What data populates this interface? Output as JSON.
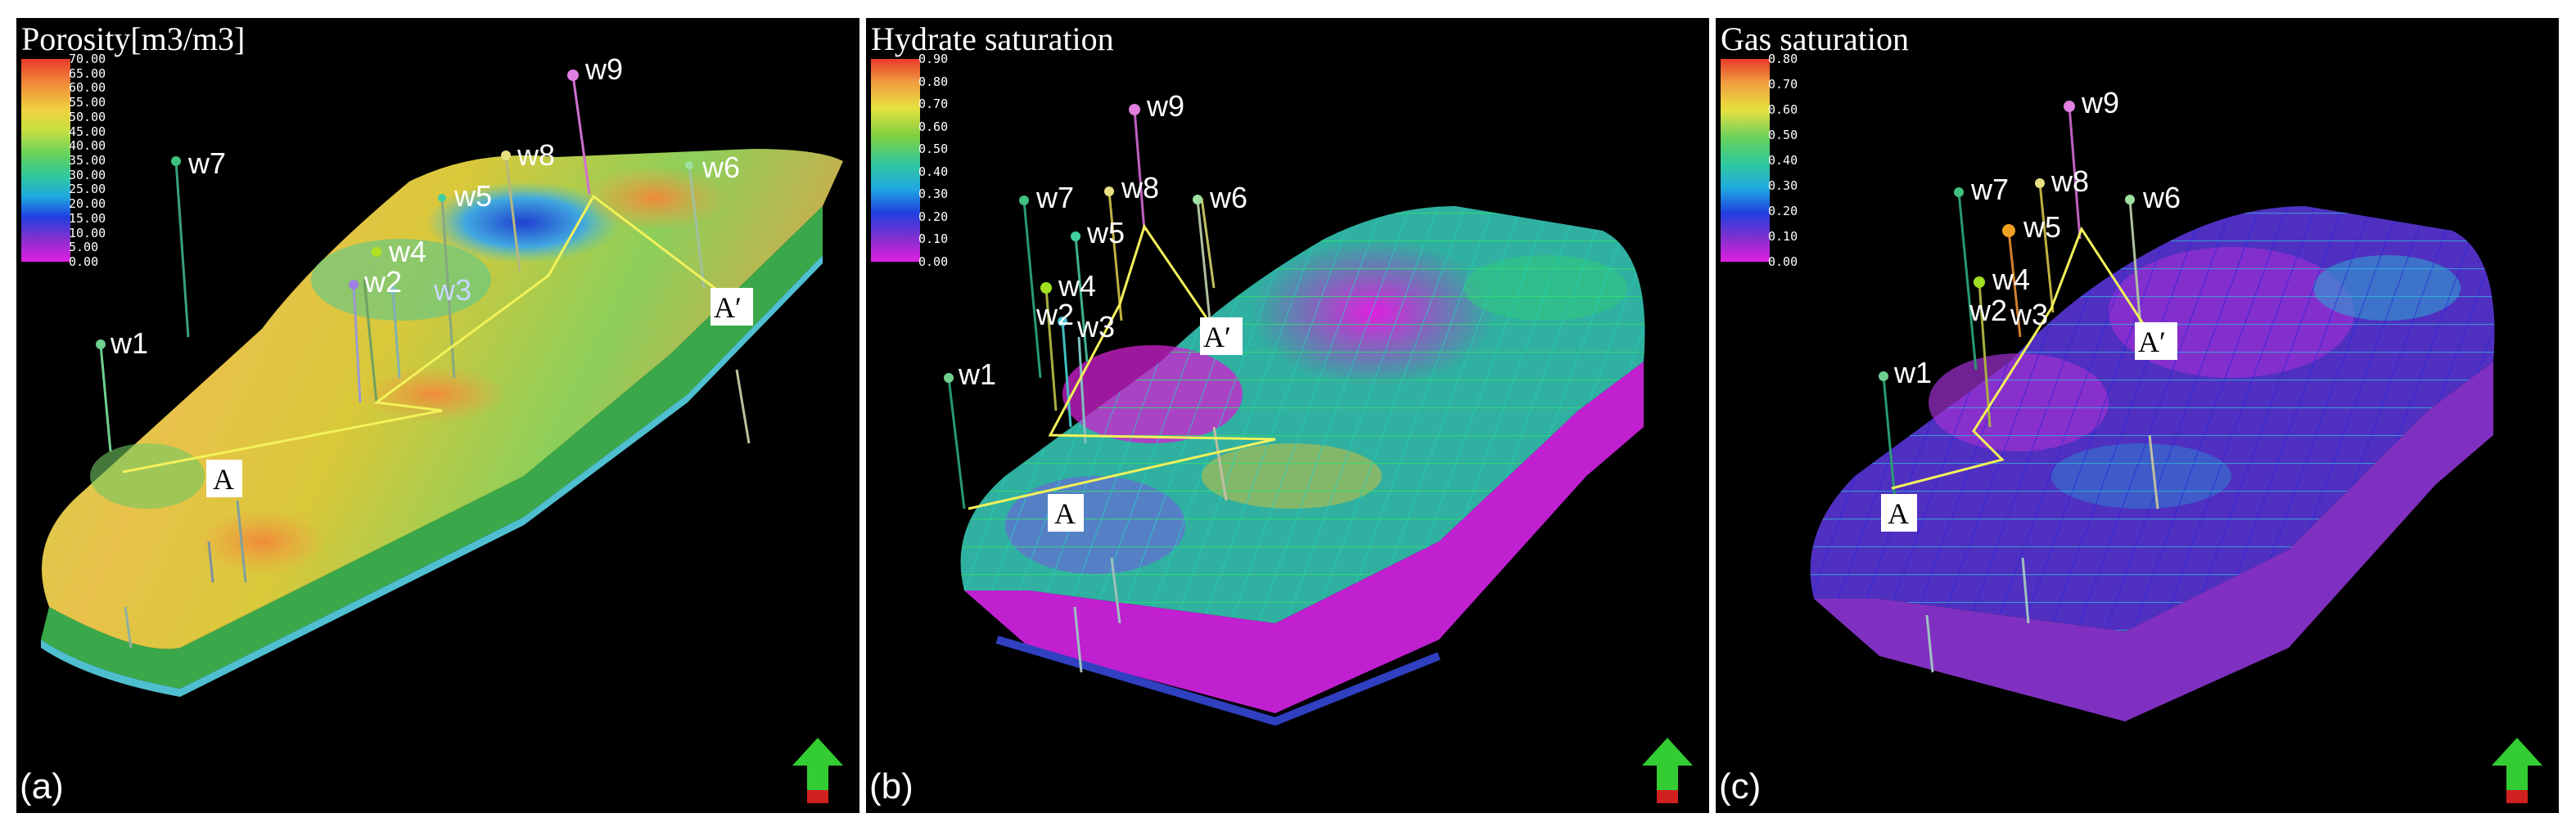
{
  "panels": [
    {
      "title": "Porosity[m3/m3]",
      "label": "(a)",
      "colorbar": [
        "70.00",
        "65.00",
        "60.00",
        "55.00",
        "50.00",
        "45.00",
        "40.00",
        "35.00",
        "30.00",
        "25.00",
        "20.00",
        "15.00",
        "10.00",
        "5.00",
        "0.00"
      ],
      "wells": [
        "w1",
        "w2",
        "w3",
        "w4",
        "w5",
        "w6",
        "w7",
        "w8",
        "w9"
      ],
      "section": [
        "A",
        "A′"
      ]
    },
    {
      "title": "Hydrate saturation",
      "label": "(b)",
      "colorbar": [
        "0.90",
        "0.80",
        "0.70",
        "0.60",
        "0.50",
        "0.40",
        "0.30",
        "0.20",
        "0.10",
        "0.00"
      ],
      "wells": [
        "w1",
        "w2",
        "w3",
        "w4",
        "w5",
        "w6",
        "w7",
        "w8",
        "w9"
      ],
      "section": [
        "A",
        "A′"
      ]
    },
    {
      "title": "Gas saturation",
      "label": "(c)",
      "colorbar": [
        "0.80",
        "0.70",
        "0.60",
        "0.50",
        "0.40",
        "0.30",
        "0.20",
        "0.10",
        "0.00"
      ],
      "wells": [
        "w1",
        "w2",
        "w3",
        "w4",
        "w5",
        "w6",
        "w7",
        "w8",
        "w9"
      ],
      "section": [
        "A",
        "A′"
      ]
    }
  ],
  "colors": {
    "background": "#000000",
    "section_line": "#f2f25a",
    "north_arrow": "#33cc33"
  },
  "icons": [
    "north-arrow-icon"
  ]
}
